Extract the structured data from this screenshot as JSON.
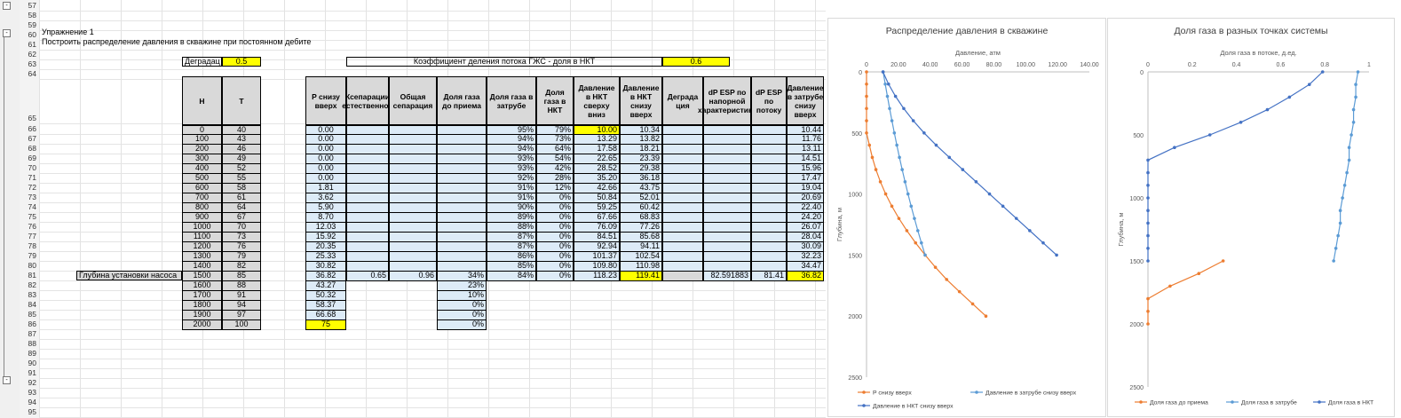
{
  "row_numbers": [
    "57",
    "58",
    "59",
    "60",
    "61",
    "62",
    "63",
    "64",
    "65",
    "66",
    "67",
    "68",
    "69",
    "70",
    "71",
    "72",
    "73",
    "74",
    "75",
    "76",
    "77",
    "78",
    "79",
    "80",
    "81",
    "82",
    "83",
    "84",
    "85",
    "86",
    "87",
    "88",
    "89",
    "90",
    "91",
    "92",
    "93",
    "94",
    "95"
  ],
  "exercise_title": "Упражнение 1",
  "exercise_task": "Построить распределение давления в скважине при постоянном дебите",
  "degradation_label": "Деградац",
  "degradation_value": "0.5",
  "split_label": "Коэффициент деления потока ГЖС - доля в НКТ",
  "split_value": "0.6",
  "pump_label": "Глубина установки насоса",
  "headers": {
    "H": "H",
    "T": "T",
    "p_up": "P снизу вверх",
    "ksep": "Ксепарации естественной",
    "total_sep": "Общая сепарация",
    "gas_intake": "Доля газа до приема",
    "gas_annulus": "Доля газа в затрубе",
    "gas_tubing": "Доля газа в НКТ",
    "p_tubing_down": "Давление в НКТ сверху вниз",
    "p_tubing_up": "Давление в НКТ снизу вверх",
    "degr": "Деграда ция",
    "dp_head": "dP ESP по напорной характеристике",
    "dp_flow": "dP ESP по потоку",
    "p_annulus": "Давление в затрубе снизу вверх"
  },
  "table_rows": [
    {
      "H": "0",
      "T": "40",
      "p": "0.00",
      "gz": "95%",
      "gn": "79%",
      "pd": "10.00",
      "pu": "10.34",
      "pa": "10.44"
    },
    {
      "H": "100",
      "T": "43",
      "p": "0.00",
      "gz": "94%",
      "gn": "73%",
      "pd": "13.29",
      "pu": "13.82",
      "pa": "11.76"
    },
    {
      "H": "200",
      "T": "46",
      "p": "0.00",
      "gz": "94%",
      "gn": "64%",
      "pd": "17.58",
      "pu": "18.21",
      "pa": "13.11"
    },
    {
      "H": "300",
      "T": "49",
      "p": "0.00",
      "gz": "93%",
      "gn": "54%",
      "pd": "22.65",
      "pu": "23.39",
      "pa": "14.51"
    },
    {
      "H": "400",
      "T": "52",
      "p": "0.00",
      "gz": "93%",
      "gn": "42%",
      "pd": "28.52",
      "pu": "29.38",
      "pa": "15.96"
    },
    {
      "H": "500",
      "T": "55",
      "p": "0.00",
      "gz": "92%",
      "gn": "28%",
      "pd": "35.20",
      "pu": "36.18",
      "pa": "17.47"
    },
    {
      "H": "600",
      "T": "58",
      "p": "1.81",
      "gz": "91%",
      "gn": "12%",
      "pd": "42.66",
      "pu": "43.75",
      "pa": "19.04"
    },
    {
      "H": "700",
      "T": "61",
      "p": "3.62",
      "gz": "91%",
      "gn": "0%",
      "pd": "50.84",
      "pu": "52.01",
      "pa": "20.69"
    },
    {
      "H": "800",
      "T": "64",
      "p": "5.90",
      "gz": "90%",
      "gn": "0%",
      "pd": "59.25",
      "pu": "60.42",
      "pa": "22.40"
    },
    {
      "H": "900",
      "T": "67",
      "p": "8.70",
      "gz": "89%",
      "gn": "0%",
      "pd": "67.66",
      "pu": "68.83",
      "pa": "24.20"
    },
    {
      "H": "1000",
      "T": "70",
      "p": "12.03",
      "gz": "88%",
      "gn": "0%",
      "pd": "76.09",
      "pu": "77.26",
      "pa": "26.07"
    },
    {
      "H": "1100",
      "T": "73",
      "p": "15.92",
      "gz": "87%",
      "gn": "0%",
      "pd": "84.51",
      "pu": "85.68",
      "pa": "28.04"
    },
    {
      "H": "1200",
      "T": "76",
      "p": "20.35",
      "gz": "87%",
      "gn": "0%",
      "pd": "92.94",
      "pu": "94.11",
      "pa": "30.09"
    },
    {
      "H": "1300",
      "T": "79",
      "p": "25.33",
      "gz": "86%",
      "gn": "0%",
      "pd": "101.37",
      "pu": "102.54",
      "pa": "32.23"
    },
    {
      "H": "1400",
      "T": "82",
      "p": "30.82",
      "gz": "85%",
      "gn": "0%",
      "pd": "109.80",
      "pu": "110.98",
      "pa": "34.47"
    },
    {
      "H": "1500",
      "T": "85",
      "p": "36.82",
      "ks": "0.65",
      "ts": "0.96",
      "gi": "34%",
      "gz": "84%",
      "gn": "0%",
      "pd": "118.23",
      "pu": "119.41",
      "dh": "82.591883",
      "df": "81.41",
      "pa": "36.82"
    },
    {
      "H": "1600",
      "T": "88",
      "p": "43.27",
      "gi": "23%"
    },
    {
      "H": "1700",
      "T": "91",
      "p": "50.32",
      "gi": "10%"
    },
    {
      "H": "1800",
      "T": "94",
      "p": "58.37",
      "gi": "0%"
    },
    {
      "H": "1900",
      "T": "97",
      "p": "66.68",
      "gi": "0%"
    },
    {
      "H": "2000",
      "T": "100",
      "p": "75",
      "gi": "0%"
    }
  ],
  "chart_data": [
    {
      "type": "line",
      "title": "Распределение давления в скважине",
      "xlabel": "Давление, атм",
      "ylabel": "Глубина, м",
      "xlim": [
        0,
        140
      ],
      "ylim": [
        0,
        2500
      ],
      "x_ticks": [
        "0",
        "20.00",
        "40.00",
        "60.00",
        "80.00",
        "100.00",
        "120.00",
        "140.00"
      ],
      "y_ticks": [
        "0",
        "500",
        "1000",
        "1500",
        "2000",
        "2500"
      ],
      "series": [
        {
          "name": "Р снизу вверх",
          "color": "#ED7D31",
          "points": [
            [
              0,
              0
            ],
            [
              0,
              100
            ],
            [
              0,
              200
            ],
            [
              0,
              300
            ],
            [
              0,
              400
            ],
            [
              0,
              500
            ],
            [
              1.81,
              600
            ],
            [
              3.62,
              700
            ],
            [
              5.9,
              800
            ],
            [
              8.7,
              900
            ],
            [
              12.03,
              1000
            ],
            [
              15.92,
              1100
            ],
            [
              20.35,
              1200
            ],
            [
              25.33,
              1300
            ],
            [
              30.82,
              1400
            ],
            [
              36.82,
              1500
            ],
            [
              43.27,
              1600
            ],
            [
              50.32,
              1700
            ],
            [
              58.37,
              1800
            ],
            [
              66.68,
              1900
            ],
            [
              75,
              2000
            ]
          ]
        },
        {
          "name": "Давление в затрубе снизу вверх",
          "color": "#5B9BD5",
          "points": [
            [
              10.44,
              0
            ],
            [
              11.76,
              100
            ],
            [
              13.11,
              200
            ],
            [
              14.51,
              300
            ],
            [
              15.96,
              400
            ],
            [
              17.47,
              500
            ],
            [
              19.04,
              600
            ],
            [
              20.69,
              700
            ],
            [
              22.4,
              800
            ],
            [
              24.2,
              900
            ],
            [
              26.07,
              1000
            ],
            [
              28.04,
              1100
            ],
            [
              30.09,
              1200
            ],
            [
              32.23,
              1300
            ],
            [
              34.47,
              1400
            ],
            [
              36.82,
              1500
            ]
          ]
        },
        {
          "name": "Давление в НКТ снизу вверх",
          "color": "#4472C4",
          "points": [
            [
              10.34,
              0
            ],
            [
              13.82,
              100
            ],
            [
              18.21,
              200
            ],
            [
              23.39,
              300
            ],
            [
              29.38,
              400
            ],
            [
              36.18,
              500
            ],
            [
              43.75,
              600
            ],
            [
              52.01,
              700
            ],
            [
              60.42,
              800
            ],
            [
              68.83,
              900
            ],
            [
              77.26,
              1000
            ],
            [
              85.68,
              1100
            ],
            [
              94.11,
              1200
            ],
            [
              102.54,
              1300
            ],
            [
              110.98,
              1400
            ],
            [
              119.41,
              1500
            ]
          ]
        }
      ]
    },
    {
      "type": "line",
      "title": "Доля газа в разных точках системы",
      "xlabel": "Доля газа в потоке, д.ед.",
      "ylabel": "Глубина, м",
      "xlim": [
        0,
        1
      ],
      "ylim": [
        0,
        2500
      ],
      "x_ticks": [
        "0",
        "0.2",
        "0.4",
        "0.6",
        "0.8",
        "1"
      ],
      "y_ticks": [
        "0",
        "500",
        "1000",
        "1500",
        "2000",
        "2500"
      ],
      "series": [
        {
          "name": "Доля газа до приема",
          "color": "#ED7D31",
          "points": [
            [
              0.34,
              1500
            ],
            [
              0.23,
              1600
            ],
            [
              0.1,
              1700
            ],
            [
              0,
              1800
            ],
            [
              0,
              1900
            ],
            [
              0,
              2000
            ]
          ]
        },
        {
          "name": "Доля газа в затрубе",
          "color": "#5B9BD5",
          "points": [
            [
              0.95,
              0
            ],
            [
              0.94,
              100
            ],
            [
              0.94,
              200
            ],
            [
              0.93,
              300
            ],
            [
              0.93,
              400
            ],
            [
              0.92,
              500
            ],
            [
              0.91,
              600
            ],
            [
              0.91,
              700
            ],
            [
              0.9,
              800
            ],
            [
              0.89,
              900
            ],
            [
              0.88,
              1000
            ],
            [
              0.87,
              1100
            ],
            [
              0.87,
              1200
            ],
            [
              0.86,
              1300
            ],
            [
              0.85,
              1400
            ],
            [
              0.84,
              1500
            ]
          ]
        },
        {
          "name": "Доля газа в НКТ",
          "color": "#4472C4",
          "points": [
            [
              0.79,
              0
            ],
            [
              0.73,
              100
            ],
            [
              0.64,
              200
            ],
            [
              0.54,
              300
            ],
            [
              0.42,
              400
            ],
            [
              0.28,
              500
            ],
            [
              0.12,
              600
            ],
            [
              0,
              700
            ],
            [
              0,
              800
            ],
            [
              0,
              900
            ],
            [
              0,
              1000
            ],
            [
              0,
              1100
            ],
            [
              0,
              1200
            ],
            [
              0,
              1300
            ],
            [
              0,
              1400
            ],
            [
              0,
              1500
            ]
          ]
        }
      ]
    }
  ]
}
